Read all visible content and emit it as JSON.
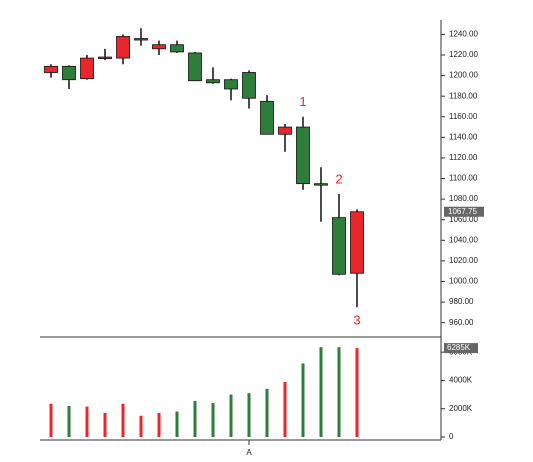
{
  "chart_data": {
    "type": "candlestick",
    "categories": [
      null,
      null,
      null,
      null,
      null,
      null,
      null,
      null,
      null,
      null,
      null,
      "A",
      null,
      null,
      null,
      null,
      null,
      null
    ],
    "open": [
      1203,
      1209,
      1197,
      1217,
      1217,
      1235,
      1226,
      1230,
      1222,
      1196,
      1196,
      1203,
      1175,
      1143,
      1150,
      1095,
      1062,
      1008
    ],
    "high": [
      1211,
      1210,
      1220,
      1226,
      1240,
      1246,
      1234,
      1234,
      1223,
      1208,
      1197,
      1205,
      1181,
      1153,
      1160,
      1111,
      1085,
      1070
    ],
    "low": [
      1198,
      1187,
      1196,
      1215,
      1211,
      1229,
      1220,
      1222,
      1195,
      1192,
      1176,
      1168,
      1143,
      1126,
      1089,
      1058,
      1006,
      975
    ],
    "close": [
      1209,
      1196,
      1217,
      1218,
      1238,
      1236,
      1230,
      1223,
      1195,
      1193,
      1187,
      1178,
      1143,
      1150,
      1095,
      1094,
      1007,
      1067.75
    ],
    "up_color": "#e8262b",
    "down_color": "#2e7d3a",
    "ylim": [
      948,
      1254
    ],
    "yticks": [
      {
        "value": 960,
        "label": "960.00"
      },
      {
        "value": 980,
        "label": "980.00"
      },
      {
        "value": 1000,
        "label": "1000.00"
      },
      {
        "value": 1020,
        "label": "1020.00"
      },
      {
        "value": 1040,
        "label": "1040.00"
      },
      {
        "value": 1060,
        "label": "1060.00"
      },
      {
        "value": 1080,
        "label": "1080.00"
      },
      {
        "value": 1100,
        "label": "1100.00"
      },
      {
        "value": 1120,
        "label": "1120.00"
      },
      {
        "value": 1140,
        "label": "1140.00"
      },
      {
        "value": 1160,
        "label": "1160.00"
      },
      {
        "value": 1180,
        "label": "1180.00"
      },
      {
        "value": 1200,
        "label": "1200.00"
      },
      {
        "value": 1220,
        "label": "1220.00"
      },
      {
        "value": 1240,
        "label": "1240.00"
      }
    ],
    "annotations": [
      {
        "text": "1",
        "index": 14,
        "anchor": "high"
      },
      {
        "text": "2",
        "index": 16,
        "anchor": "high"
      },
      {
        "text": "3",
        "index": 17,
        "anchor": "low"
      }
    ],
    "volume": {
      "values": [
        2350,
        2200,
        2150,
        1700,
        2350,
        1500,
        1700,
        1800,
        2550,
        2400,
        3000,
        3100,
        3400,
        3900,
        5200,
        6350,
        6350,
        6285
      ],
      "last_label": "6285K",
      "ylim": [
        0,
        7000
      ],
      "yticks": [
        0,
        {
          "value": 2000,
          "label": "2000K"
        },
        {
          "value": 4000,
          "label": "4000K"
        },
        {
          "value": 6000,
          "label": "6000K"
        }
      ]
    }
  }
}
